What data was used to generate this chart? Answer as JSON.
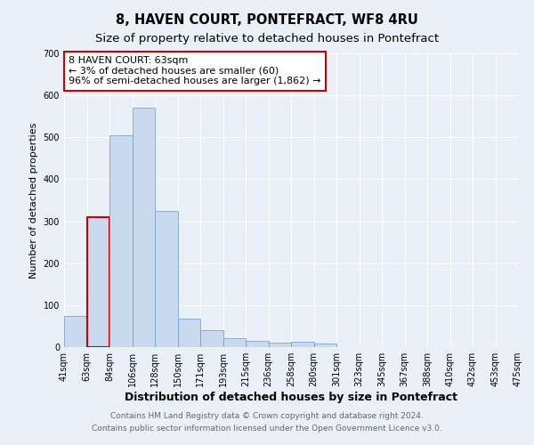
{
  "title": "8, HAVEN COURT, PONTEFRACT, WF8 4RU",
  "subtitle": "Size of property relative to detached houses in Pontefract",
  "xlabel": "Distribution of detached houses by size in Pontefract",
  "ylabel": "Number of detached properties",
  "bar_values": [
    75,
    310,
    505,
    570,
    325,
    68,
    40,
    22,
    15,
    11,
    12,
    8,
    0,
    0,
    0,
    0,
    0,
    0,
    0,
    0
  ],
  "bar_labels": [
    "41sqm",
    "63sqm",
    "84sqm",
    "106sqm",
    "128sqm",
    "150sqm",
    "171sqm",
    "193sqm",
    "215sqm",
    "236sqm",
    "258sqm",
    "280sqm",
    "301sqm",
    "323sqm",
    "345sqm",
    "367sqm",
    "388sqm",
    "410sqm",
    "432sqm",
    "453sqm",
    "475sqm"
  ],
  "bar_color": "#c9d9ee",
  "bar_edge_color": "#6699cc",
  "highlight_bar_index": 1,
  "highlight_bar_edge_color": "#cc0000",
  "annotation_box_text": "8 HAVEN COURT: 63sqm\n← 3% of detached houses are smaller (60)\n96% of semi-detached houses are larger (1,862) →",
  "annotation_box_edge_color": "#cc0000",
  "ylim": [
    0,
    700
  ],
  "yticks": [
    0,
    100,
    200,
    300,
    400,
    500,
    600,
    700
  ],
  "background_color": "#eaf0f8",
  "plot_bg_color": "#eaf0f8",
  "grid_color": "#ffffff",
  "footer_line1": "Contains HM Land Registry data © Crown copyright and database right 2024.",
  "footer_line2": "Contains public sector information licensed under the Open Government Licence v3.0.",
  "title_fontsize": 10.5,
  "subtitle_fontsize": 9.5,
  "xlabel_fontsize": 9,
  "ylabel_fontsize": 8,
  "tick_fontsize": 7,
  "annotation_fontsize": 8,
  "footer_fontsize": 6.5
}
